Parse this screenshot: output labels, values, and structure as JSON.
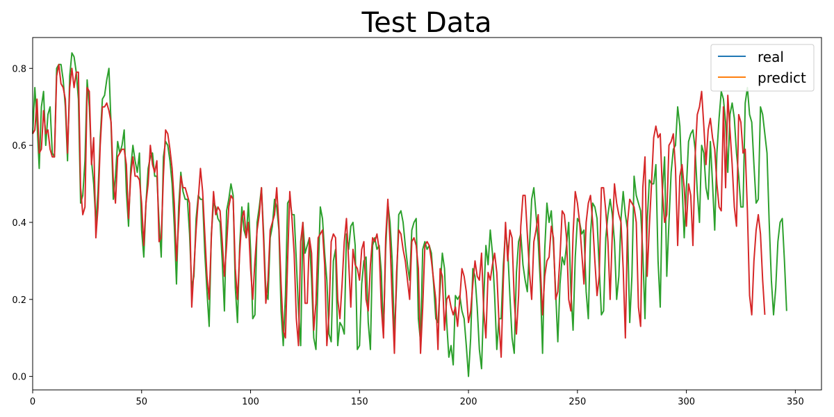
{
  "chart_data": {
    "type": "line",
    "title": "Test Data",
    "xlabel": "",
    "ylabel": "",
    "xlim": [
      0,
      362
    ],
    "ylim": [
      -0.035,
      0.88
    ],
    "x_ticks": [
      0,
      50,
      100,
      150,
      200,
      250,
      300,
      350
    ],
    "y_ticks": [
      0.0,
      0.2,
      0.4,
      0.6,
      0.8
    ],
    "grid": false,
    "legend": {
      "placement": "top-right",
      "entries": [
        {
          "name": "real",
          "color": "#1f77b4"
        },
        {
          "name": "predict",
          "color": "#ff7f0e"
        }
      ]
    },
    "series": [
      {
        "name": "real",
        "legend_color": "#1f77b4",
        "line_color": "#2ca02c",
        "values": [
          0.63,
          0.75,
          0.66,
          0.54,
          0.7,
          0.74,
          0.6,
          0.68,
          0.7,
          0.58,
          0.57,
          0.8,
          0.81,
          0.81,
          0.77,
          0.7,
          0.56,
          0.78,
          0.84,
          0.83,
          0.79,
          0.72,
          0.45,
          0.47,
          0.56,
          0.77,
          0.7,
          0.56,
          0.5,
          0.4,
          0.48,
          0.62,
          0.72,
          0.73,
          0.77,
          0.8,
          0.65,
          0.46,
          0.52,
          0.61,
          0.58,
          0.6,
          0.64,
          0.48,
          0.39,
          0.54,
          0.6,
          0.56,
          0.53,
          0.58,
          0.38,
          0.31,
          0.45,
          0.54,
          0.57,
          0.58,
          0.52,
          0.52,
          0.4,
          0.31,
          0.57,
          0.61,
          0.6,
          0.56,
          0.5,
          0.39,
          0.24,
          0.44,
          0.53,
          0.48,
          0.46,
          0.46,
          0.37,
          0.23,
          0.26,
          0.41,
          0.47,
          0.46,
          0.46,
          0.32,
          0.22,
          0.13,
          0.37,
          0.45,
          0.44,
          0.41,
          0.4,
          0.3,
          0.17,
          0.43,
          0.46,
          0.5,
          0.47,
          0.23,
          0.14,
          0.34,
          0.44,
          0.38,
          0.36,
          0.45,
          0.33,
          0.15,
          0.16,
          0.4,
          0.44,
          0.49,
          0.37,
          0.22,
          0.2,
          0.36,
          0.39,
          0.46,
          0.44,
          0.38,
          0.17,
          0.08,
          0.21,
          0.45,
          0.46,
          0.42,
          0.42,
          0.3,
          0.17,
          0.08,
          0.4,
          0.32,
          0.34,
          0.36,
          0.25,
          0.1,
          0.07,
          0.26,
          0.44,
          0.41,
          0.32,
          0.25,
          0.11,
          0.09,
          0.3,
          0.33,
          0.08,
          0.14,
          0.13,
          0.11,
          0.37,
          0.33,
          0.39,
          0.4,
          0.34,
          0.07,
          0.08,
          0.24,
          0.3,
          0.31,
          0.14,
          0.07,
          0.34,
          0.36,
          0.33,
          0.34,
          0.27,
          0.11,
          0.33,
          0.45,
          0.4,
          0.3,
          0.1,
          0.24,
          0.42,
          0.43,
          0.4,
          0.34,
          0.29,
          0.25,
          0.38,
          0.4,
          0.41,
          0.15,
          0.09,
          0.33,
          0.35,
          0.33,
          0.34,
          0.32,
          0.24,
          0.15,
          0.14,
          0.23,
          0.32,
          0.28,
          0.14,
          0.05,
          0.08,
          0.03,
          0.21,
          0.2,
          0.21,
          0.17,
          0.15,
          0.08,
          0.0,
          0.1,
          0.28,
          0.26,
          0.18,
          0.07,
          0.02,
          0.2,
          0.34,
          0.29,
          0.38,
          0.32,
          0.21,
          0.07,
          0.15,
          0.15,
          0.29,
          0.38,
          0.33,
          0.21,
          0.1,
          0.06,
          0.27,
          0.35,
          0.37,
          0.29,
          0.25,
          0.22,
          0.34,
          0.46,
          0.49,
          0.42,
          0.35,
          0.24,
          0.06,
          0.33,
          0.45,
          0.4,
          0.43,
          0.34,
          0.22,
          0.09,
          0.24,
          0.31,
          0.29,
          0.34,
          0.4,
          0.22,
          0.12,
          0.31,
          0.41,
          0.4,
          0.37,
          0.38,
          0.22,
          0.15,
          0.37,
          0.45,
          0.44,
          0.41,
          0.28,
          0.16,
          0.17,
          0.36,
          0.42,
          0.46,
          0.42,
          0.35,
          0.2,
          0.26,
          0.41,
          0.48,
          0.42,
          0.38,
          0.14,
          0.26,
          0.52,
          0.47,
          0.45,
          0.43,
          0.32,
          0.15,
          0.4,
          0.51,
          0.5,
          0.5,
          0.55,
          0.3,
          0.18,
          0.48,
          0.57,
          0.26,
          0.4,
          0.53,
          0.59,
          0.6,
          0.7,
          0.65,
          0.5,
          0.36,
          0.49,
          0.61,
          0.63,
          0.64,
          0.59,
          0.48,
          0.4,
          0.6,
          0.58,
          0.49,
          0.46,
          0.61,
          0.5,
          0.38,
          0.58,
          0.67,
          0.74,
          0.72,
          0.66,
          0.53,
          0.68,
          0.71,
          0.67,
          0.58,
          0.52,
          0.44,
          0.44,
          0.71,
          0.75,
          0.68,
          0.66,
          0.55,
          0.45,
          0.46,
          0.7,
          0.68,
          0.63,
          0.58,
          0.4,
          0.25,
          0.16,
          0.23,
          0.35,
          0.4,
          0.41,
          0.3,
          0.17
        ]
      },
      {
        "name": "predict",
        "legend_color": "#ff7f0e",
        "line_color": "#d62728",
        "values": [
          0.63,
          0.64,
          0.72,
          0.58,
          0.59,
          0.69,
          0.63,
          0.64,
          0.59,
          0.57,
          0.57,
          0.78,
          0.81,
          0.76,
          0.75,
          0.72,
          0.58,
          0.75,
          0.8,
          0.75,
          0.79,
          0.79,
          0.49,
          0.42,
          0.44,
          0.75,
          0.74,
          0.55,
          0.62,
          0.36,
          0.44,
          0.6,
          0.7,
          0.7,
          0.71,
          0.69,
          0.66,
          0.51,
          0.45,
          0.57,
          0.58,
          0.59,
          0.59,
          0.55,
          0.41,
          0.52,
          0.57,
          0.52,
          0.52,
          0.51,
          0.45,
          0.34,
          0.45,
          0.5,
          0.6,
          0.55,
          0.53,
          0.56,
          0.35,
          0.36,
          0.52,
          0.64,
          0.63,
          0.59,
          0.54,
          0.45,
          0.3,
          0.4,
          0.52,
          0.49,
          0.49,
          0.47,
          0.45,
          0.18,
          0.28,
          0.38,
          0.46,
          0.54,
          0.48,
          0.37,
          0.26,
          0.2,
          0.36,
          0.48,
          0.42,
          0.44,
          0.43,
          0.35,
          0.26,
          0.34,
          0.44,
          0.47,
          0.46,
          0.28,
          0.2,
          0.32,
          0.41,
          0.43,
          0.36,
          0.4,
          0.28,
          0.2,
          0.3,
          0.38,
          0.42,
          0.49,
          0.35,
          0.19,
          0.25,
          0.38,
          0.4,
          0.42,
          0.49,
          0.39,
          0.24,
          0.12,
          0.1,
          0.3,
          0.48,
          0.41,
          0.32,
          0.15,
          0.08,
          0.35,
          0.4,
          0.19,
          0.19,
          0.36,
          0.32,
          0.12,
          0.19,
          0.36,
          0.37,
          0.38,
          0.29,
          0.08,
          0.16,
          0.35,
          0.37,
          0.36,
          0.2,
          0.15,
          0.24,
          0.35,
          0.41,
          0.3,
          0.18,
          0.33,
          0.29,
          0.28,
          0.25,
          0.33,
          0.35,
          0.2,
          0.17,
          0.29,
          0.36,
          0.35,
          0.37,
          0.33,
          0.18,
          0.1,
          0.36,
          0.46,
          0.35,
          0.2,
          0.06,
          0.27,
          0.38,
          0.37,
          0.33,
          0.3,
          0.25,
          0.2,
          0.35,
          0.36,
          0.34,
          0.28,
          0.06,
          0.18,
          0.34,
          0.35,
          0.34,
          0.3,
          0.25,
          0.2,
          0.07,
          0.28,
          0.26,
          0.12,
          0.2,
          0.21,
          0.18,
          0.16,
          0.18,
          0.13,
          0.2,
          0.28,
          0.26,
          0.22,
          0.14,
          0.17,
          0.24,
          0.3,
          0.26,
          0.25,
          0.32,
          0.17,
          0.1,
          0.27,
          0.25,
          0.29,
          0.32,
          0.27,
          0.14,
          0.05,
          0.25,
          0.4,
          0.3,
          0.38,
          0.36,
          0.2,
          0.11,
          0.21,
          0.39,
          0.47,
          0.47,
          0.37,
          0.27,
          0.2,
          0.35,
          0.38,
          0.42,
          0.28,
          0.16,
          0.26,
          0.3,
          0.31,
          0.39,
          0.36,
          0.2,
          0.22,
          0.31,
          0.43,
          0.42,
          0.36,
          0.2,
          0.17,
          0.37,
          0.48,
          0.45,
          0.4,
          0.32,
          0.24,
          0.4,
          0.45,
          0.47,
          0.4,
          0.3,
          0.21,
          0.26,
          0.49,
          0.49,
          0.43,
          0.35,
          0.2,
          0.37,
          0.5,
          0.45,
          0.42,
          0.4,
          0.28,
          0.1,
          0.4,
          0.46,
          0.45,
          0.44,
          0.4,
          0.18,
          0.13,
          0.49,
          0.57,
          0.26,
          0.39,
          0.5,
          0.62,
          0.65,
          0.62,
          0.63,
          0.48,
          0.4,
          0.42,
          0.6,
          0.61,
          0.63,
          0.54,
          0.34,
          0.52,
          0.55,
          0.49,
          0.39,
          0.5,
          0.47,
          0.34,
          0.57,
          0.68,
          0.7,
          0.74,
          0.65,
          0.55,
          0.64,
          0.67,
          0.62,
          0.59,
          0.5,
          0.44,
          0.43,
          0.7,
          0.49,
          0.73,
          0.64,
          0.55,
          0.44,
          0.39,
          0.68,
          0.66,
          0.58,
          0.59,
          0.43,
          0.21,
          0.16,
          0.3,
          0.38,
          0.42,
          0.37,
          0.25,
          0.16
        ]
      }
    ]
  }
}
